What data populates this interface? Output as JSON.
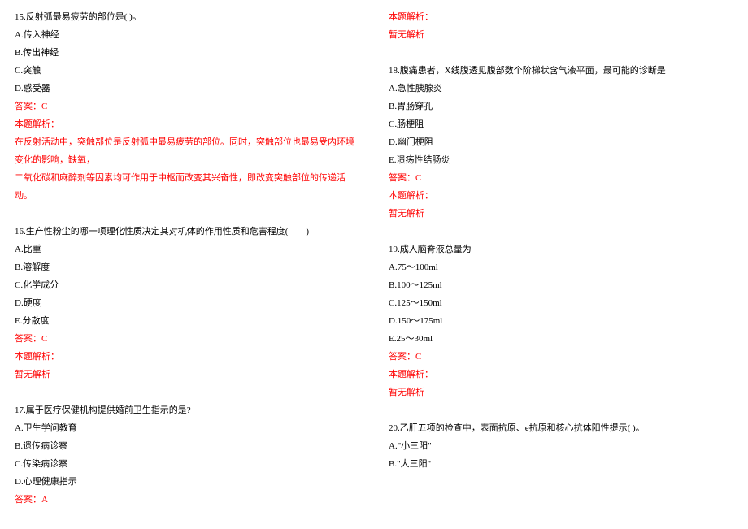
{
  "colors": {
    "text": "#000000",
    "answer": "#ff0000",
    "bg": "#ffffff"
  },
  "font": {
    "family": "SimSun",
    "size_pt": 11
  },
  "left": {
    "q15": {
      "stem": "15.反射弧最易疲劳的部位是( )。",
      "a": "A.传入神经",
      "b": "B.传出神经",
      "c": "C.突触",
      "d": "D.感受器",
      "ans": "答案：C",
      "exp_h": "本题解析：",
      "exp1": "在反射活动中，突触部位是反射弧中最易疲劳的部位。同时，突触部位也最易受内环境变化的影响，缺氧，",
      "exp2": "二氧化碳和麻醉剂等因素均可作用于中枢而改变其兴奋性，即改变突触部位的传递活动。"
    },
    "q16": {
      "stem": "16.生产性粉尘的哪一项理化性质决定其对机体的作用性质和危害程度(　　)",
      "a": "A.比重",
      "b": "B.溶解度",
      "c": "C.化学成分",
      "d": "D.硬度",
      "e": "E.分散度",
      "ans": "答案：C",
      "exp_h": "本题解析：",
      "exp1": "暂无解析"
    },
    "q17": {
      "stem": "17.属于医疗保健机构提供婚前卫生指示的是?",
      "a": "A.卫生学问教育",
      "b": "B.遗传病诊察",
      "c": "C.传染病诊察",
      "d": "D.心理健康指示",
      "ans": "答案：A"
    }
  },
  "right": {
    "q17exp": {
      "h": "本题解析：",
      "t": "暂无解析"
    },
    "q18": {
      "stem": "18.腹痛患者，X线腹透见腹部数个阶梯状含气液平面，最可能的诊断是",
      "a": "A.急性胰腺炎",
      "b": "B.胃肠穿孔",
      "c": "C.肠梗阻",
      "d": "D.幽门梗阻",
      "e": "E.溃疡性结肠炎",
      "ans": "答案：C",
      "exp_h": "本题解析：",
      "exp_t": "暂无解析"
    },
    "q19": {
      "stem": "19.成人脑脊液总量为",
      "a": "A.75～100ml",
      "b": "B.100～125ml",
      "c": "C.125～150ml",
      "d": "D.150～175ml",
      "e": "E.25～30ml",
      "ans": "答案：C",
      "exp_h": "本题解析：",
      "exp_t": "暂无解析"
    },
    "q20": {
      "stem": "20.乙肝五项的检查中，表面抗原、e抗原和核心抗体阳性提示( )。",
      "a": "A.\"小三阳\"",
      "b": "B.\"大三阳\""
    }
  }
}
